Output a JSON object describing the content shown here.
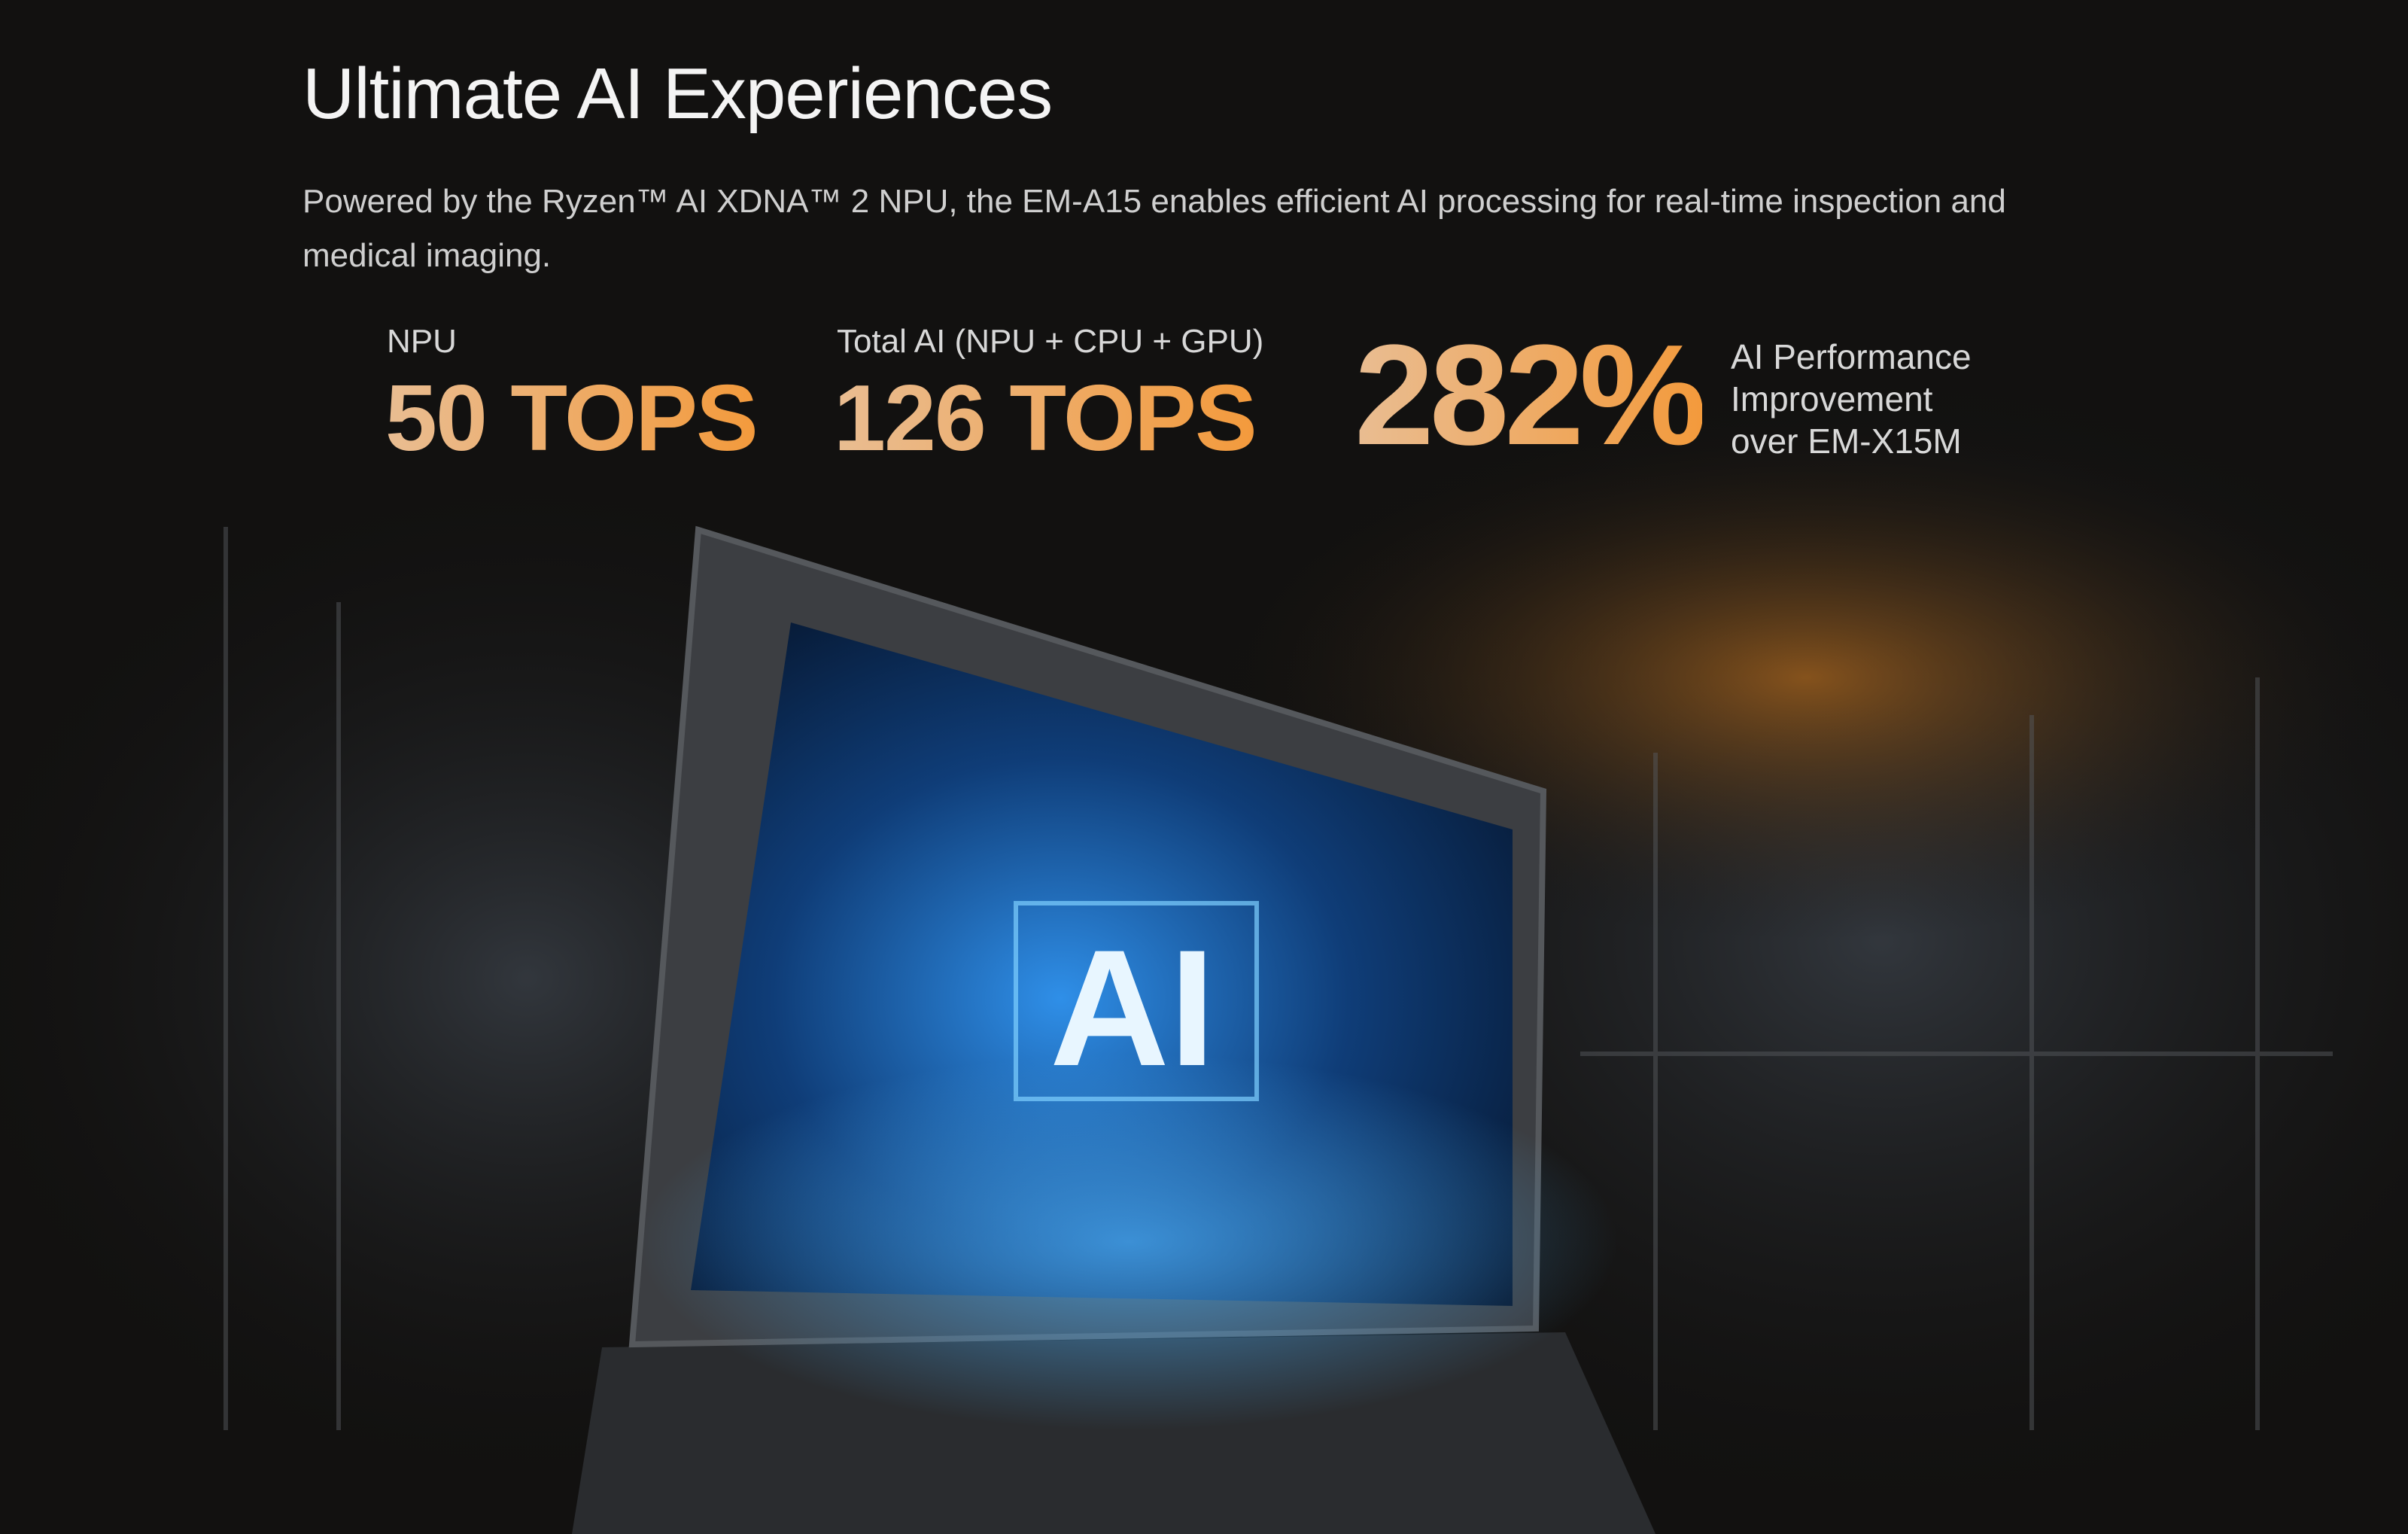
{
  "header": {
    "title": "Ultimate AI Experiences",
    "subtitle": "Powered by the Ryzen™ AI XDNA™ 2 NPU, the EM-A15 enables efficient AI processing for real-time inspection and medical imaging."
  },
  "stats": [
    {
      "label": "NPU",
      "value": "50 TOPS"
    },
    {
      "label": "Total AI (NPU + CPU + GPU)",
      "value": "126 TOPS"
    },
    {
      "value": "282%",
      "description": [
        "AI Performance",
        "Improvement",
        "over EM-X15M"
      ]
    }
  ],
  "hero": {
    "screen_text": "AI"
  },
  "colors": {
    "background": "#121110",
    "accent_start": "#e9bd92",
    "accent_end": "#f39a3c",
    "screen_glow": "#2f8fe8"
  }
}
